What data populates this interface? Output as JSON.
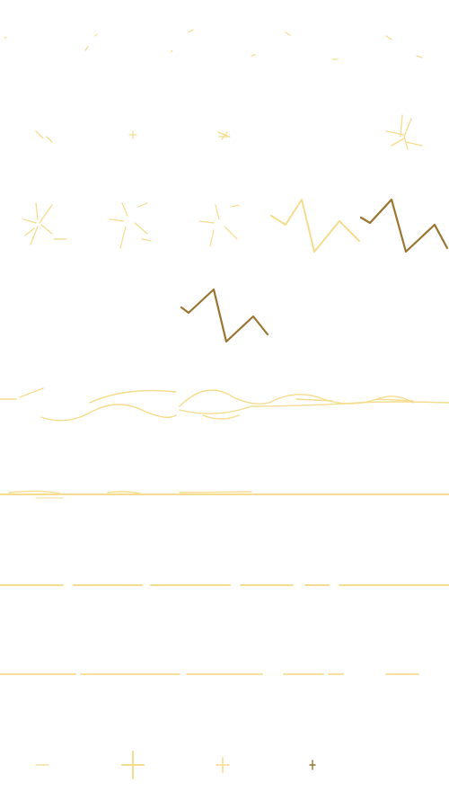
{
  "sheet": {
    "background": "#ffffff",
    "palette": {
      "light_gold": "#f5dc8e",
      "pale_gold": "#f7e4a6",
      "dark_gold": "#9a7431"
    },
    "rows": [
      {
        "name": "sparkle-row",
        "frames": 5,
        "icon": "sparkle-dots-icon"
      },
      {
        "name": "burst-row",
        "frames": 4,
        "icon": "burst-icon"
      },
      {
        "name": "lightning-row-a",
        "frames": 5,
        "icon": "lightning-icon"
      },
      {
        "name": "lightning-row-b",
        "frames": 1,
        "icon": "lightning-icon"
      },
      {
        "name": "wave-row",
        "frames": 1,
        "icon": "wave-stroke-icon"
      },
      {
        "name": "line-row-a",
        "frames": 1,
        "icon": "glow-line-icon"
      },
      {
        "name": "line-row-b",
        "frames": 1,
        "icon": "dashed-line-icon"
      },
      {
        "name": "line-row-c",
        "frames": 1,
        "icon": "fading-line-icon"
      },
      {
        "name": "star-row",
        "frames": 4,
        "icon": "star-sparkle-icon"
      }
    ]
  }
}
